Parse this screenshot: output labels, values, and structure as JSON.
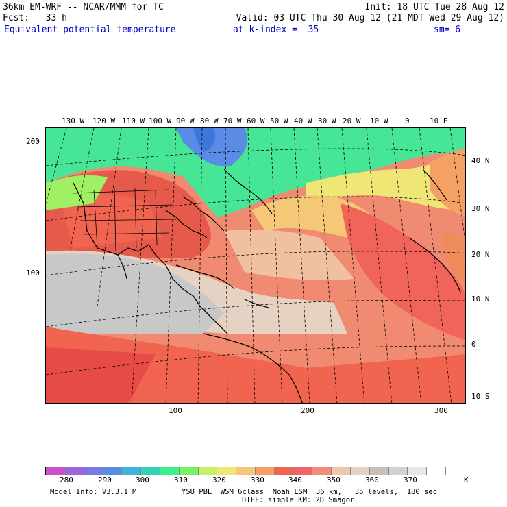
{
  "header": {
    "model": "36km EM-WRF -- NCAR/MMM for TC",
    "init": "Init: 18 UTC Tue 28 Aug 12",
    "fcst": "Fcst:   33 h",
    "valid": "Valid: 03 UTC Thu 30 Aug 12 (21 MDT Wed 29 Aug 12)",
    "field": "Equivalent potential temperature",
    "kindex": "at k-index =  35",
    "sm": "sm= 6"
  },
  "map": {
    "lon_labels": [
      "130 W",
      "120 W",
      "110 W",
      "100 W",
      "90 W",
      "80 W",
      "70 W",
      "60 W",
      "50 W",
      "40 W",
      "30 W",
      "20 W",
      "10 W",
      "0",
      "10 E"
    ],
    "lat_labels": [
      "40 N",
      "30 N",
      "20 N",
      "10 N",
      "0",
      "10 S"
    ],
    "grid_y_labels": [
      "200",
      "100"
    ],
    "grid_x_labels": [
      "100",
      "200",
      "300"
    ]
  },
  "colorbar": {
    "colors": [
      "#c850c8",
      "#a064dc",
      "#7878e6",
      "#5a8ce6",
      "#3cb4dc",
      "#32d2b4",
      "#3cf08c",
      "#78f064",
      "#c8f064",
      "#f0e678",
      "#f5c878",
      "#f5a064",
      "#f06450",
      "#f06464",
      "#f08c78",
      "#f0c8a8",
      "#e6d2c3",
      "#c8beb4",
      "#d2d2d2",
      "#e6e6e6",
      "#ffffff",
      "#ffffff"
    ],
    "tick_labels": [
      "280",
      "290",
      "300",
      "310",
      "320",
      "330",
      "340",
      "350",
      "360",
      "370"
    ],
    "unit": "K"
  },
  "footer": {
    "model_info": "Model Info: V3.3.1 M",
    "physics": "YSU PBL  WSM 6class  Noah LSM  36 km,   35 levels,  180 sec",
    "diffusion": "DIFF: simple KM: 2D Smagor"
  }
}
